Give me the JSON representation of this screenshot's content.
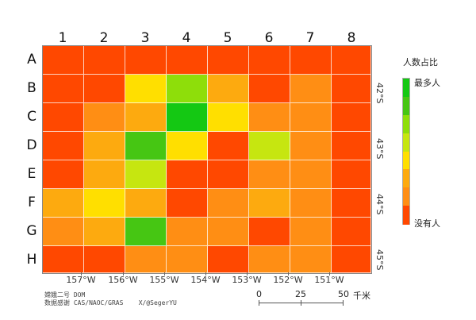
{
  "map": {
    "columns": [
      "1",
      "2",
      "3",
      "4",
      "5",
      "6",
      "7",
      "8"
    ],
    "rows": [
      "A",
      "B",
      "C",
      "D",
      "E",
      "F",
      "G",
      "H"
    ],
    "cells": [
      [
        "#ff4800",
        "#ff4800",
        "#ff4800",
        "#ff4800",
        "#ff4800",
        "#ff4800",
        "#ff4800",
        "#ff4800"
      ],
      [
        "#ff4800",
        "#ff4800",
        "#ffdf00",
        "#8ede0a",
        "#fdaa0f",
        "#ff4800",
        "#ff8e14",
        "#ff4800"
      ],
      [
        "#ff4800",
        "#ff8e14",
        "#fdaa0f",
        "#14c813",
        "#ffdf00",
        "#ff8e14",
        "#ff8e14",
        "#ff4800"
      ],
      [
        "#ff4800",
        "#fdaa0f",
        "#46c613",
        "#ffdf00",
        "#ff4800",
        "#c6e610",
        "#ff8e14",
        "#ff4800"
      ],
      [
        "#ff4800",
        "#fdaa0f",
        "#c6e610",
        "#ff4800",
        "#ff4800",
        "#ff8e14",
        "#ff8e14",
        "#ff4800"
      ],
      [
        "#fdaa0f",
        "#ffdf00",
        "#fdaa0f",
        "#ff4800",
        "#ff8e14",
        "#fdaa0f",
        "#ff8e14",
        "#ff4800"
      ],
      [
        "#ff8e14",
        "#fdaa0f",
        "#46c613",
        "#ff8e14",
        "#ff8e14",
        "#ff4800",
        "#ff8e14",
        "#ff4800"
      ],
      [
        "#ff4800",
        "#ff4800",
        "#ff8e14",
        "#ff8e14",
        "#ff4800",
        "#ff8e14",
        "#ff8e14",
        "#ff4800"
      ]
    ],
    "longitude_labels": [
      "157°W",
      "156°W",
      "155°W",
      "154°W",
      "153°W",
      "152°W",
      "151°W"
    ],
    "latitude_labels": [
      "42°S",
      "43°S",
      "44°S",
      "45°S"
    ]
  },
  "legend": {
    "title": "人数占比",
    "max_label": "最多人",
    "min_label": "没有人",
    "colors": [
      "#14c813",
      "#46c613",
      "#8ede0a",
      "#c6e610",
      "#ffdf00",
      "#fdaa0f",
      "#ff8e14",
      "#ff4800"
    ]
  },
  "credits": {
    "line1": "嫦娥二号 DOM",
    "line2": "数据感谢 CAS/NAOC/GRAS    X/@SegerYU"
  },
  "scale_bar": {
    "labels": [
      "0",
      "25",
      "50"
    ],
    "unit": "千米"
  }
}
